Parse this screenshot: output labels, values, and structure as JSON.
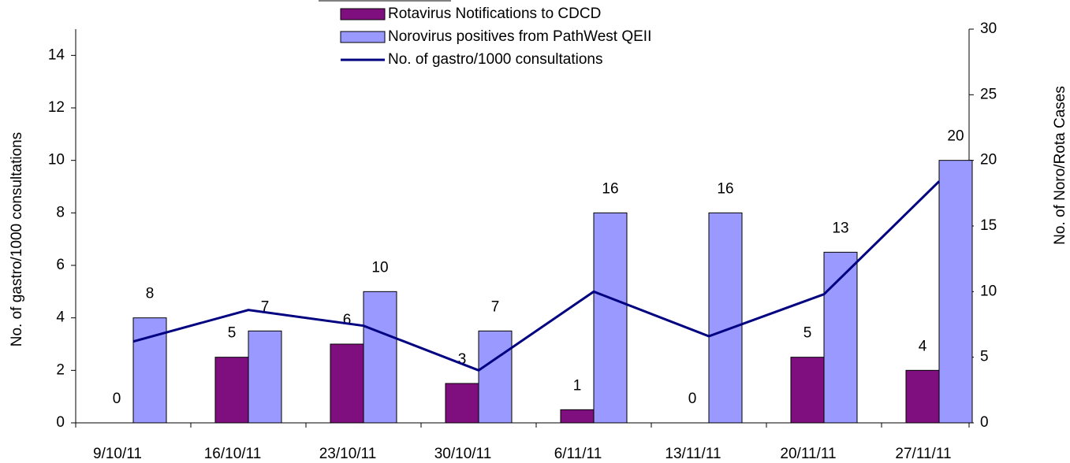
{
  "chart_data": {
    "type": "bar",
    "categories": [
      "9/10/11",
      "16/10/11",
      "23/10/11",
      "30/10/11",
      "6/11/11",
      "13/11/11",
      "20/11/11",
      "27/11/11"
    ],
    "series": [
      {
        "name": "Rotavirus Notifications to CDCD",
        "color": "#7f0f7e",
        "type": "bar",
        "axis": "y2",
        "values": [
          0,
          5,
          6,
          3,
          1,
          0,
          5,
          4
        ]
      },
      {
        "name": "Norovirus positives from PathWest QEII",
        "color": "#9999ff",
        "type": "bar",
        "axis": "y2",
        "values": [
          8,
          7,
          10,
          7,
          16,
          16,
          13,
          20
        ]
      },
      {
        "name": "No. of gastro/1000 consultations",
        "color": "#000080",
        "type": "line",
        "values": [
          3.1,
          4.3,
          3.7,
          2.0,
          5.0,
          3.3,
          4.9,
          9.2
        ]
      }
    ],
    "ylabel": "No. of gastro/1000 consultations",
    "y2label": "No. of Noro/Rota Cases",
    "ylim": [
      0,
      15
    ],
    "yticks": [
      0,
      2,
      4,
      6,
      8,
      10,
      12,
      14
    ],
    "y2lim": [
      0,
      30
    ],
    "y2ticks": [
      0,
      5,
      10,
      15,
      20,
      25,
      30
    ],
    "legend": "top"
  }
}
